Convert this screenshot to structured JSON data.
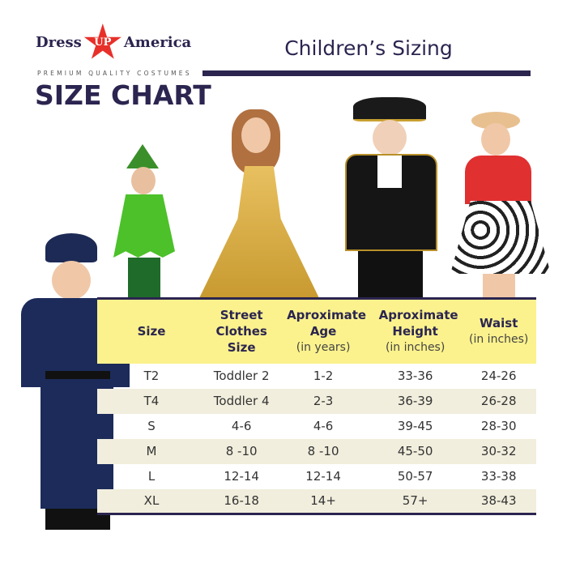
{
  "brand": {
    "left": "Dress",
    "star": "UP",
    "right": "America",
    "tagline": "PREMIUM QUALITY COSTUMES",
    "accent": "#e8302a"
  },
  "heading": "SIZE CHART",
  "title": "Children’s Sizing",
  "colors": {
    "navy": "#2b2550",
    "header_bg": "#fbf28d",
    "alt_row": "#f1eedd"
  },
  "table": {
    "headers": [
      {
        "main": "Size",
        "sub": ""
      },
      {
        "main": "Street Clothes Size",
        "sub": ""
      },
      {
        "main": "Aproximate Age",
        "sub": "(in years)"
      },
      {
        "main": "Aproximate Height",
        "sub": "(in inches)"
      },
      {
        "main": "Waist",
        "sub": "(in inches)"
      }
    ],
    "rows": [
      [
        "T2",
        "Toddler 2",
        "1-2",
        "33-36",
        "24-26"
      ],
      [
        "T4",
        "Toddler 4",
        "2-3",
        "36-39",
        "26-28"
      ],
      [
        "S",
        "4-6",
        "4-6",
        "39-45",
        "28-30"
      ],
      [
        "M",
        "8 -10",
        "8 -10",
        "45-50",
        "30-32"
      ],
      [
        "L",
        "12-14",
        "12-14",
        "50-57",
        "33-38"
      ],
      [
        "XL",
        "16-18",
        "14+",
        "57+",
        "38-43"
      ]
    ]
  }
}
